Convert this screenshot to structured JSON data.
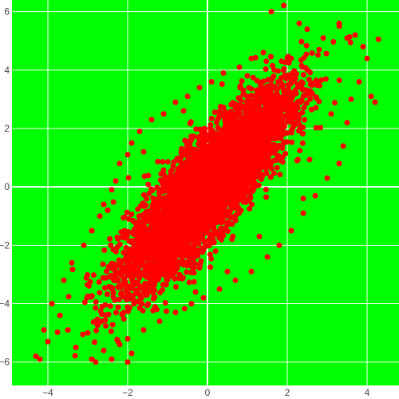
{
  "chart_data": {
    "type": "scatter",
    "title": "",
    "xlabel": "",
    "ylabel": "",
    "xlim": [
      -4.9,
      4.8
    ],
    "ylim": [
      -6.8,
      6.4
    ],
    "x_ticks": [
      -4,
      -2,
      0,
      2,
      4
    ],
    "x_tick_labels": [
      "−4",
      "−2",
      "0",
      "2",
      "4"
    ],
    "y_ticks": [
      -6,
      -4,
      -2,
      0,
      2,
      4,
      6
    ],
    "y_tick_labels": [
      "−6",
      "−4",
      "−2",
      "0",
      "2",
      "4",
      "6"
    ],
    "grid": true,
    "legend": "none",
    "colors": {
      "plot_background": "#00ff00",
      "marker": "#ff0000",
      "grid": "#ffffff",
      "tick_text": "#444444"
    },
    "series": [
      {
        "distribution": "bivariate normal, strong positive correlation",
        "mean": [
          0,
          0
        ],
        "std": [
          1,
          1.6
        ],
        "correlation": 0.85,
        "points": [
          [
            -4.3,
            -5.8
          ],
          [
            -4.2,
            -5.9
          ],
          [
            -4.0,
            -5.3
          ],
          [
            -4.1,
            -4.9
          ],
          [
            -3.9,
            -4.0
          ],
          [
            -3.7,
            -4.4
          ],
          [
            -3.5,
            -4.9
          ],
          [
            -3.6,
            -3.2
          ],
          [
            -3.4,
            -2.6
          ],
          [
            -3.3,
            -5.5
          ],
          [
            -3.0,
            -5.0
          ],
          [
            -2.9,
            -5.9
          ],
          [
            -2.8,
            -6.0
          ],
          [
            -2.6,
            -5.6
          ],
          [
            -2.4,
            -5.9
          ],
          [
            -2.2,
            -5.4
          ],
          [
            -2.0,
            -6.0
          ],
          [
            -1.9,
            -5.7
          ],
          [
            -2.9,
            -1.5
          ],
          [
            -2.7,
            -1.0
          ],
          [
            -2.6,
            -0.6
          ],
          [
            -2.4,
            -0.1
          ],
          [
            -2.3,
            0.2
          ],
          [
            -2.2,
            0.8
          ],
          [
            -2.0,
            1.1
          ],
          [
            -1.9,
            1.5
          ],
          [
            -1.7,
            1.9
          ],
          [
            -1.4,
            2.3
          ],
          [
            -1.1,
            2.5
          ],
          [
            -0.8,
            2.9
          ],
          [
            -0.5,
            3.1
          ],
          [
            -0.2,
            3.4
          ],
          [
            0.1,
            3.6
          ],
          [
            0.4,
            3.9
          ],
          [
            0.8,
            4.1
          ],
          [
            1.1,
            4.4
          ],
          [
            1.4,
            4.6
          ],
          [
            1.6,
            6.0
          ],
          [
            2.3,
            5.6
          ],
          [
            2.5,
            5.4
          ],
          [
            2.9,
            5.1
          ],
          [
            3.3,
            5.6
          ],
          [
            3.5,
            5.1
          ],
          [
            3.7,
            5.2
          ],
          [
            3.9,
            4.8
          ],
          [
            4.0,
            4.4
          ],
          [
            4.1,
            3.1
          ],
          [
            4.2,
            2.9
          ],
          [
            3.8,
            3.6
          ],
          [
            3.6,
            3.0
          ],
          [
            3.5,
            2.2
          ],
          [
            3.4,
            1.4
          ],
          [
            3.3,
            0.8
          ],
          [
            3.0,
            0.3
          ],
          [
            2.7,
            -0.3
          ],
          [
            2.4,
            -0.9
          ],
          [
            2.1,
            -1.5
          ],
          [
            1.8,
            -2.0
          ],
          [
            1.5,
            -2.4
          ],
          [
            1.1,
            -2.9
          ],
          [
            0.7,
            -3.2
          ],
          [
            0.3,
            -3.5
          ],
          [
            -0.1,
            -3.8
          ],
          [
            -0.4,
            -4.0
          ],
          [
            -0.8,
            -4.3
          ],
          [
            -1.2,
            -4.6
          ],
          [
            -1.6,
            -4.9
          ],
          [
            -2.0,
            -5.2
          ],
          [
            -0.3,
            -3.6
          ],
          [
            0.5,
            -2.9
          ],
          [
            1.3,
            -1.7
          ],
          [
            2.4,
            -0.4
          ],
          [
            3.1,
            2.5
          ],
          [
            2.8,
            4.7
          ],
          [
            2.1,
            4.4
          ],
          [
            1.0,
            3.8
          ],
          [
            -0.6,
            2.6
          ],
          [
            -1.6,
            1.2
          ],
          [
            -2.5,
            -0.8
          ],
          [
            -3.1,
            -2.0
          ]
        ],
        "visible_point_count_note": "dense cloud of thousands of overlapping markers"
      }
    ]
  }
}
